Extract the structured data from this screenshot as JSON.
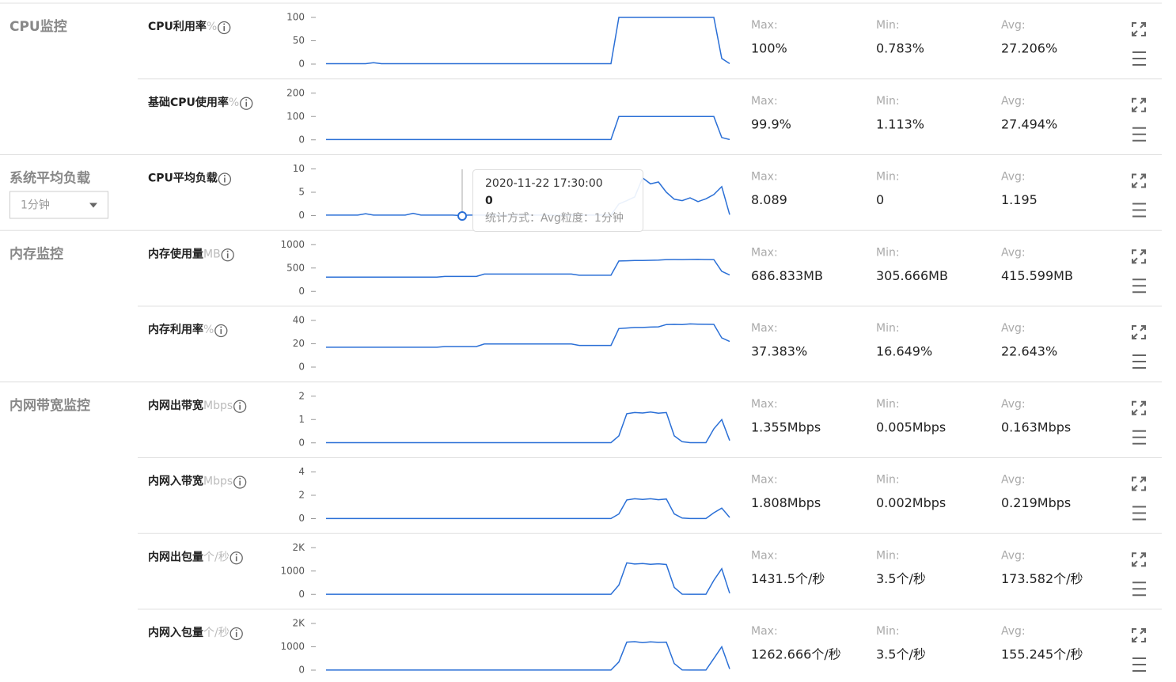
{
  "groups": [
    {
      "title": "CPU监控",
      "metrics": [
        {
          "name": "CPU利用率",
          "unit": "%",
          "ylim": [
            0,
            100
          ],
          "yticks": [
            0,
            50,
            100
          ],
          "values": [
            0.8,
            0.8,
            0.8,
            0.8,
            0.8,
            0.8,
            3,
            0.8,
            0.8,
            0.8,
            0.8,
            0.8,
            0.8,
            0.8,
            0.8,
            0.8,
            0.8,
            0.8,
            0.8,
            0.8,
            0.8,
            0.8,
            0.8,
            0.8,
            0.8,
            0.8,
            0.8,
            0.8,
            0.8,
            0.8,
            0.8,
            0.8,
            0.8,
            0.8,
            0.8,
            0.8,
            0.8,
            100,
            100,
            100,
            100,
            100,
            100,
            100,
            100,
            100,
            100,
            100,
            100,
            100,
            12,
            1
          ],
          "stats": [
            "100%",
            "0.783%",
            "27.206%"
          ]
        },
        {
          "name": "基础CPU使用率",
          "unit": "%",
          "ylim": [
            0,
            200
          ],
          "yticks": [
            0,
            100,
            200
          ],
          "values": [
            1.1,
            1.1,
            1.1,
            1.1,
            1.1,
            1.1,
            1.1,
            1.1,
            1.1,
            1.1,
            1.1,
            1.1,
            1.1,
            1.1,
            1.1,
            1.1,
            1.1,
            1.1,
            1.1,
            1.1,
            1.1,
            1.1,
            1.1,
            1.1,
            1.1,
            1.1,
            1.1,
            1.1,
            1.1,
            1.1,
            1.1,
            1.1,
            1.1,
            1.1,
            1.1,
            1.1,
            1.1,
            99.9,
            99.9,
            99.9,
            99.9,
            99.9,
            99.9,
            99.9,
            99.9,
            99.9,
            99.9,
            99.9,
            99.9,
            99.9,
            10,
            1.1
          ],
          "stats": [
            "99.9%",
            "1.113%",
            "27.494%"
          ]
        }
      ]
    },
    {
      "title": "系统平均负载",
      "select": "1分钟",
      "metrics": [
        {
          "name": "CPU平均负载",
          "ylim": [
            0,
            10
          ],
          "yticks": [
            0,
            5,
            10
          ],
          "values": [
            0.1,
            0.1,
            0.1,
            0.1,
            0.1,
            0.4,
            0.1,
            0.1,
            0.1,
            0.1,
            0.1,
            0.5,
            0.1,
            0.1,
            0.1,
            0.1,
            0.1,
            0,
            0.1,
            0.1,
            0.1,
            0.1,
            0.1,
            0.1,
            0.1,
            0.1,
            0.1,
            0.1,
            0.1,
            0.1,
            0.1,
            0.1,
            0.1,
            0.1,
            0.1,
            0.1,
            0.1,
            2.5,
            3.2,
            4,
            8.089,
            6.8,
            7.2,
            5,
            3.5,
            3.2,
            3.8,
            3,
            3.6,
            4.5,
            6.2,
            0.2
          ],
          "stats": [
            "8.089",
            "0",
            "1.195"
          ]
        }
      ]
    },
    {
      "title": "内存监控",
      "metrics": [
        {
          "name": "内存使用量",
          "unit": "MB",
          "ylim": [
            0,
            1000
          ],
          "yticks": [
            0,
            500,
            1000
          ],
          "values": [
            306,
            306,
            306,
            306,
            306,
            306,
            306,
            306,
            306,
            306,
            306,
            306,
            306,
            306,
            306,
            320,
            320,
            320,
            320,
            320,
            370,
            370,
            370,
            370,
            370,
            370,
            370,
            370,
            370,
            370,
            370,
            370,
            345,
            345,
            345,
            345,
            345,
            650,
            655,
            660,
            662,
            665,
            668,
            680,
            682,
            680,
            684,
            686,
            683,
            681,
            430,
            350
          ],
          "stats": [
            "686.833MB",
            "305.666MB",
            "415.599MB"
          ]
        },
        {
          "name": "内存利用率",
          "unit": "%",
          "ylim": [
            0,
            40
          ],
          "yticks": [
            0,
            20,
            40
          ],
          "values": [
            17,
            17,
            17,
            17,
            17,
            17,
            17,
            17,
            17,
            17,
            17,
            17,
            17,
            17,
            17,
            17.6,
            17.6,
            17.6,
            17.6,
            17.6,
            19.8,
            19.8,
            19.8,
            19.8,
            19.8,
            19.8,
            19.8,
            19.8,
            19.8,
            19.8,
            19.8,
            19.8,
            18.6,
            18.6,
            18.6,
            18.6,
            18.6,
            33,
            33.5,
            34,
            34,
            34.3,
            34.5,
            36.5,
            36.6,
            36.5,
            37,
            36.8,
            36.7,
            36.6,
            25,
            22
          ],
          "stats": [
            "37.383%",
            "16.649%",
            "22.643%"
          ]
        }
      ]
    },
    {
      "title": "内网带宽监控",
      "metrics": [
        {
          "name": "内网出带宽",
          "unit": "Mbps",
          "ylim": [
            0,
            2
          ],
          "yticks": [
            0,
            1,
            2
          ],
          "values": [
            0.01,
            0.01,
            0.01,
            0.01,
            0.01,
            0.01,
            0.01,
            0.01,
            0.01,
            0.01,
            0.01,
            0.01,
            0.01,
            0.01,
            0.01,
            0.01,
            0.01,
            0.01,
            0.01,
            0.01,
            0.01,
            0.01,
            0.01,
            0.01,
            0.01,
            0.01,
            0.01,
            0.01,
            0.01,
            0.01,
            0.01,
            0.01,
            0.01,
            0.01,
            0.01,
            0.01,
            0.01,
            0.3,
            1.25,
            1.3,
            1.28,
            1.32,
            1.27,
            1.3,
            0.3,
            0.05,
            0.01,
            0.01,
            0.01,
            0.6,
            1.0,
            0.1
          ],
          "stats": [
            "1.355Mbps",
            "0.005Mbps",
            "0.163Mbps"
          ]
        },
        {
          "name": "内网入带宽",
          "unit": "Mbps",
          "ylim": [
            0,
            4
          ],
          "yticks": [
            0,
            2,
            4
          ],
          "values": [
            0.01,
            0.01,
            0.01,
            0.01,
            0.01,
            0.01,
            0.01,
            0.01,
            0.01,
            0.01,
            0.01,
            0.01,
            0.01,
            0.01,
            0.01,
            0.01,
            0.01,
            0.01,
            0.01,
            0.01,
            0.01,
            0.01,
            0.01,
            0.01,
            0.01,
            0.01,
            0.01,
            0.01,
            0.01,
            0.01,
            0.01,
            0.01,
            0.01,
            0.01,
            0.01,
            0.01,
            0.01,
            0.4,
            1.6,
            1.7,
            1.65,
            1.7,
            1.62,
            1.68,
            0.4,
            0.05,
            0.01,
            0.01,
            0.01,
            0.5,
            0.9,
            0.1
          ],
          "stats": [
            "1.808Mbps",
            "0.002Mbps",
            "0.219Mbps"
          ]
        },
        {
          "name": "内网出包量",
          "unit": "个/秒",
          "ylim": [
            0,
            2000
          ],
          "yticks": [
            0,
            1000,
            {
              "value": 2000,
              "label": "2K"
            }
          ],
          "values": [
            5,
            5,
            5,
            5,
            5,
            5,
            5,
            5,
            5,
            5,
            5,
            5,
            5,
            5,
            5,
            5,
            5,
            5,
            5,
            5,
            5,
            5,
            5,
            5,
            5,
            5,
            5,
            5,
            5,
            5,
            5,
            5,
            5,
            5,
            5,
            5,
            5,
            400,
            1350,
            1300,
            1320,
            1290,
            1310,
            1280,
            300,
            10,
            5,
            5,
            5,
            600,
            1100,
            50
          ],
          "stats": [
            "1431.5个/秒",
            "3.5个/秒",
            "173.582个/秒"
          ]
        },
        {
          "name": "内网入包量",
          "unit": "个/秒",
          "ylim": [
            0,
            2000
          ],
          "yticks": [
            0,
            1000,
            {
              "value": 2000,
              "label": "2K"
            }
          ],
          "values": [
            5,
            5,
            5,
            5,
            5,
            5,
            5,
            5,
            5,
            5,
            5,
            5,
            5,
            5,
            5,
            5,
            5,
            5,
            5,
            5,
            5,
            5,
            5,
            5,
            5,
            5,
            5,
            5,
            5,
            5,
            5,
            5,
            5,
            5,
            5,
            5,
            5,
            350,
            1200,
            1220,
            1180,
            1210,
            1190,
            1200,
            280,
            10,
            5,
            5,
            5,
            500,
            1000,
            50
          ],
          "stats": [
            "1262.666个/秒",
            "3.5个/秒",
            "155.245个/秒"
          ]
        }
      ]
    }
  ],
  "stat_labels": [
    "Max:",
    "Min:",
    "Avg:"
  ],
  "tooltip": {
    "time": "2020-11-22 17:30:00",
    "value": 0,
    "detail": "统计方式：Avg粒度：1分钟"
  }
}
